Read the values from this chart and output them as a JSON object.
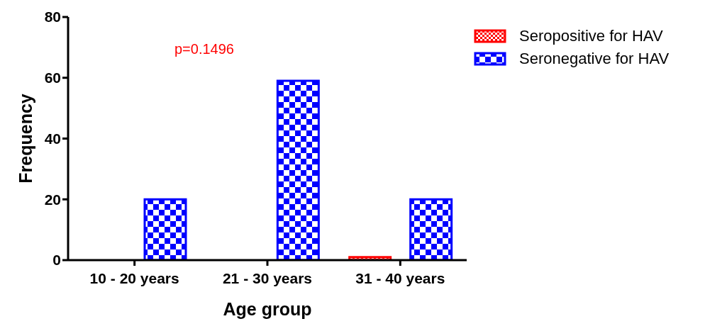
{
  "chart_data": {
    "type": "bar",
    "xlabel": "Age group",
    "ylabel": "Frequency",
    "categories": [
      "10 - 20 years",
      "21 - 30 years",
      "31 - 40 years"
    ],
    "series": [
      {
        "name": "Seropositive for HAV",
        "color": "#ff0000",
        "values": [
          0,
          0,
          1
        ]
      },
      {
        "name": "Seronegative for HAV",
        "color": "#0000ff",
        "values": [
          20,
          59,
          20
        ]
      }
    ],
    "ylim": [
      0,
      80
    ],
    "yticks": [
      0,
      20,
      40,
      60,
      80
    ],
    "grid": false,
    "legend": "top right",
    "annotations": [
      "p=0.1496"
    ]
  }
}
